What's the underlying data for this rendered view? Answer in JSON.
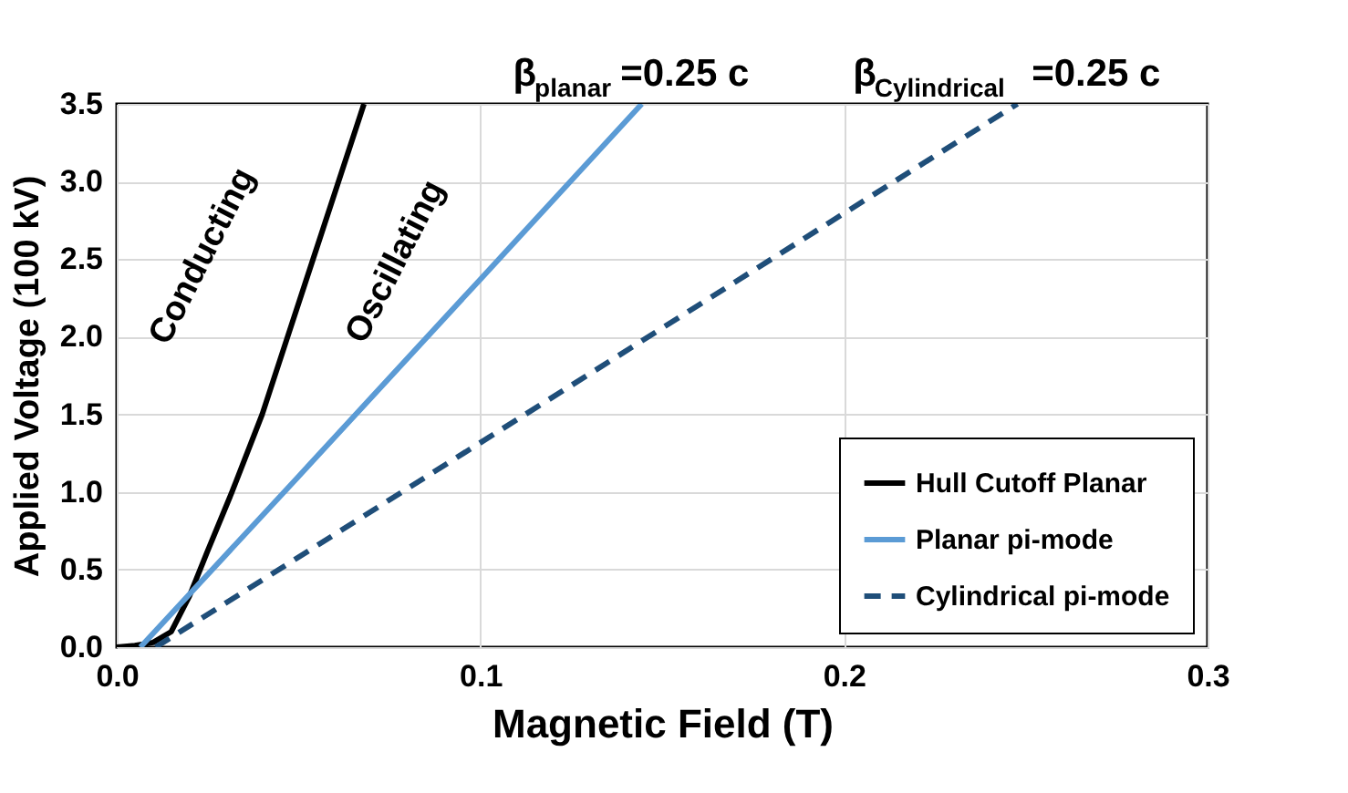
{
  "chart_data": {
    "type": "line",
    "xlabel": "Magnetic Field (T)",
    "ylabel": "Applied Voltage (100 kV)",
    "xlim": [
      0,
      0.3
    ],
    "ylim": [
      0,
      3.5
    ],
    "xticks": [
      {
        "value": 0,
        "label": "0.0"
      },
      0.1,
      0.2,
      0.3
    ],
    "yticks": [
      {
        "value": 0,
        "label": "0.0"
      },
      0.5,
      {
        "value": 1,
        "label": "1.0"
      },
      1.5,
      {
        "value": 2,
        "label": "2.0"
      },
      2.5,
      {
        "value": 3,
        "label": "3.0"
      },
      3.5
    ],
    "grid": true,
    "legend": "bottom right",
    "series": [
      {
        "name": "Hull Cutoff  Planar",
        "color": "#000000",
        "line_style": "solid",
        "x": [
          0,
          0.005,
          0.01,
          0.015,
          0.02,
          0.025,
          0.0317,
          0.04,
          0.047,
          0.054,
          0.061,
          0.068
        ],
        "values": [
          0,
          0.01,
          0.03,
          0.1,
          0.33,
          0.62,
          1.0,
          1.5,
          2.0,
          2.5,
          3.0,
          3.5
        ]
      },
      {
        "name": "Planar pi-mode",
        "color": "#5b9bd5",
        "line_style": "solid",
        "x": [
          0.0065,
          0.05,
          0.1,
          0.1444
        ],
        "values": [
          0,
          1.1,
          2.37,
          3.5
        ]
      },
      {
        "name": "Cylindrical pi-mode",
        "color": "#1f4e79",
        "line_style": "dashed",
        "x": [
          0.0107,
          0.13,
          0.2477
        ],
        "values": [
          0,
          1.76,
          3.5
        ]
      }
    ],
    "annotations": [
      {
        "text": "β$_{planar}$=0.25 c",
        "x": 0.1444,
        "y": 3.5
      },
      {
        "text": "β$_{Cylindrical}$=0.25 c",
        "x": 0.2477,
        "y": 3.5
      },
      "Conducting",
      "Oscillating"
    ]
  }
}
